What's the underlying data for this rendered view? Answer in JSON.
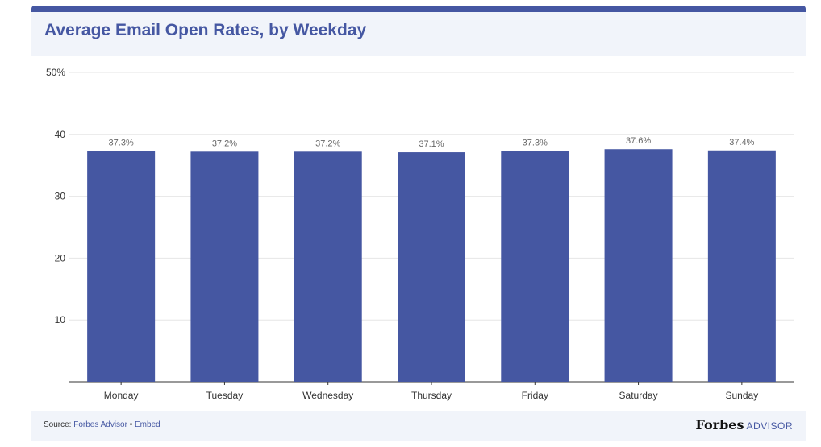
{
  "header": {
    "title": "Average Email Open Rates, by Weekday"
  },
  "footer": {
    "source_prefix": "Source: ",
    "source_name": "Forbes Advisor",
    "separator": " • ",
    "embed_label": "Embed",
    "brand_name": "Forbes",
    "brand_sub": "ADVISOR"
  },
  "colors": {
    "bar": "#4557a2",
    "accent": "#4557a2",
    "grid": "#e6e6e6",
    "header_bg": "#f1f4fa"
  },
  "chart_data": {
    "type": "bar",
    "title": "Average Email Open Rates, by Weekday",
    "xlabel": "",
    "ylabel": "",
    "categories": [
      "Monday",
      "Tuesday",
      "Wednesday",
      "Thursday",
      "Friday",
      "Saturday",
      "Sunday"
    ],
    "values": [
      37.3,
      37.2,
      37.2,
      37.1,
      37.3,
      37.6,
      37.4
    ],
    "value_labels": [
      "37.3%",
      "37.2%",
      "37.2%",
      "37.1%",
      "37.3%",
      "37.6%",
      "37.4%"
    ],
    "ylim": [
      0,
      50
    ],
    "yticks": [
      10,
      20,
      30,
      40,
      50
    ],
    "ytick_labels": [
      "10",
      "20",
      "30",
      "40",
      "50%"
    ],
    "grid": true,
    "legend": "none"
  }
}
